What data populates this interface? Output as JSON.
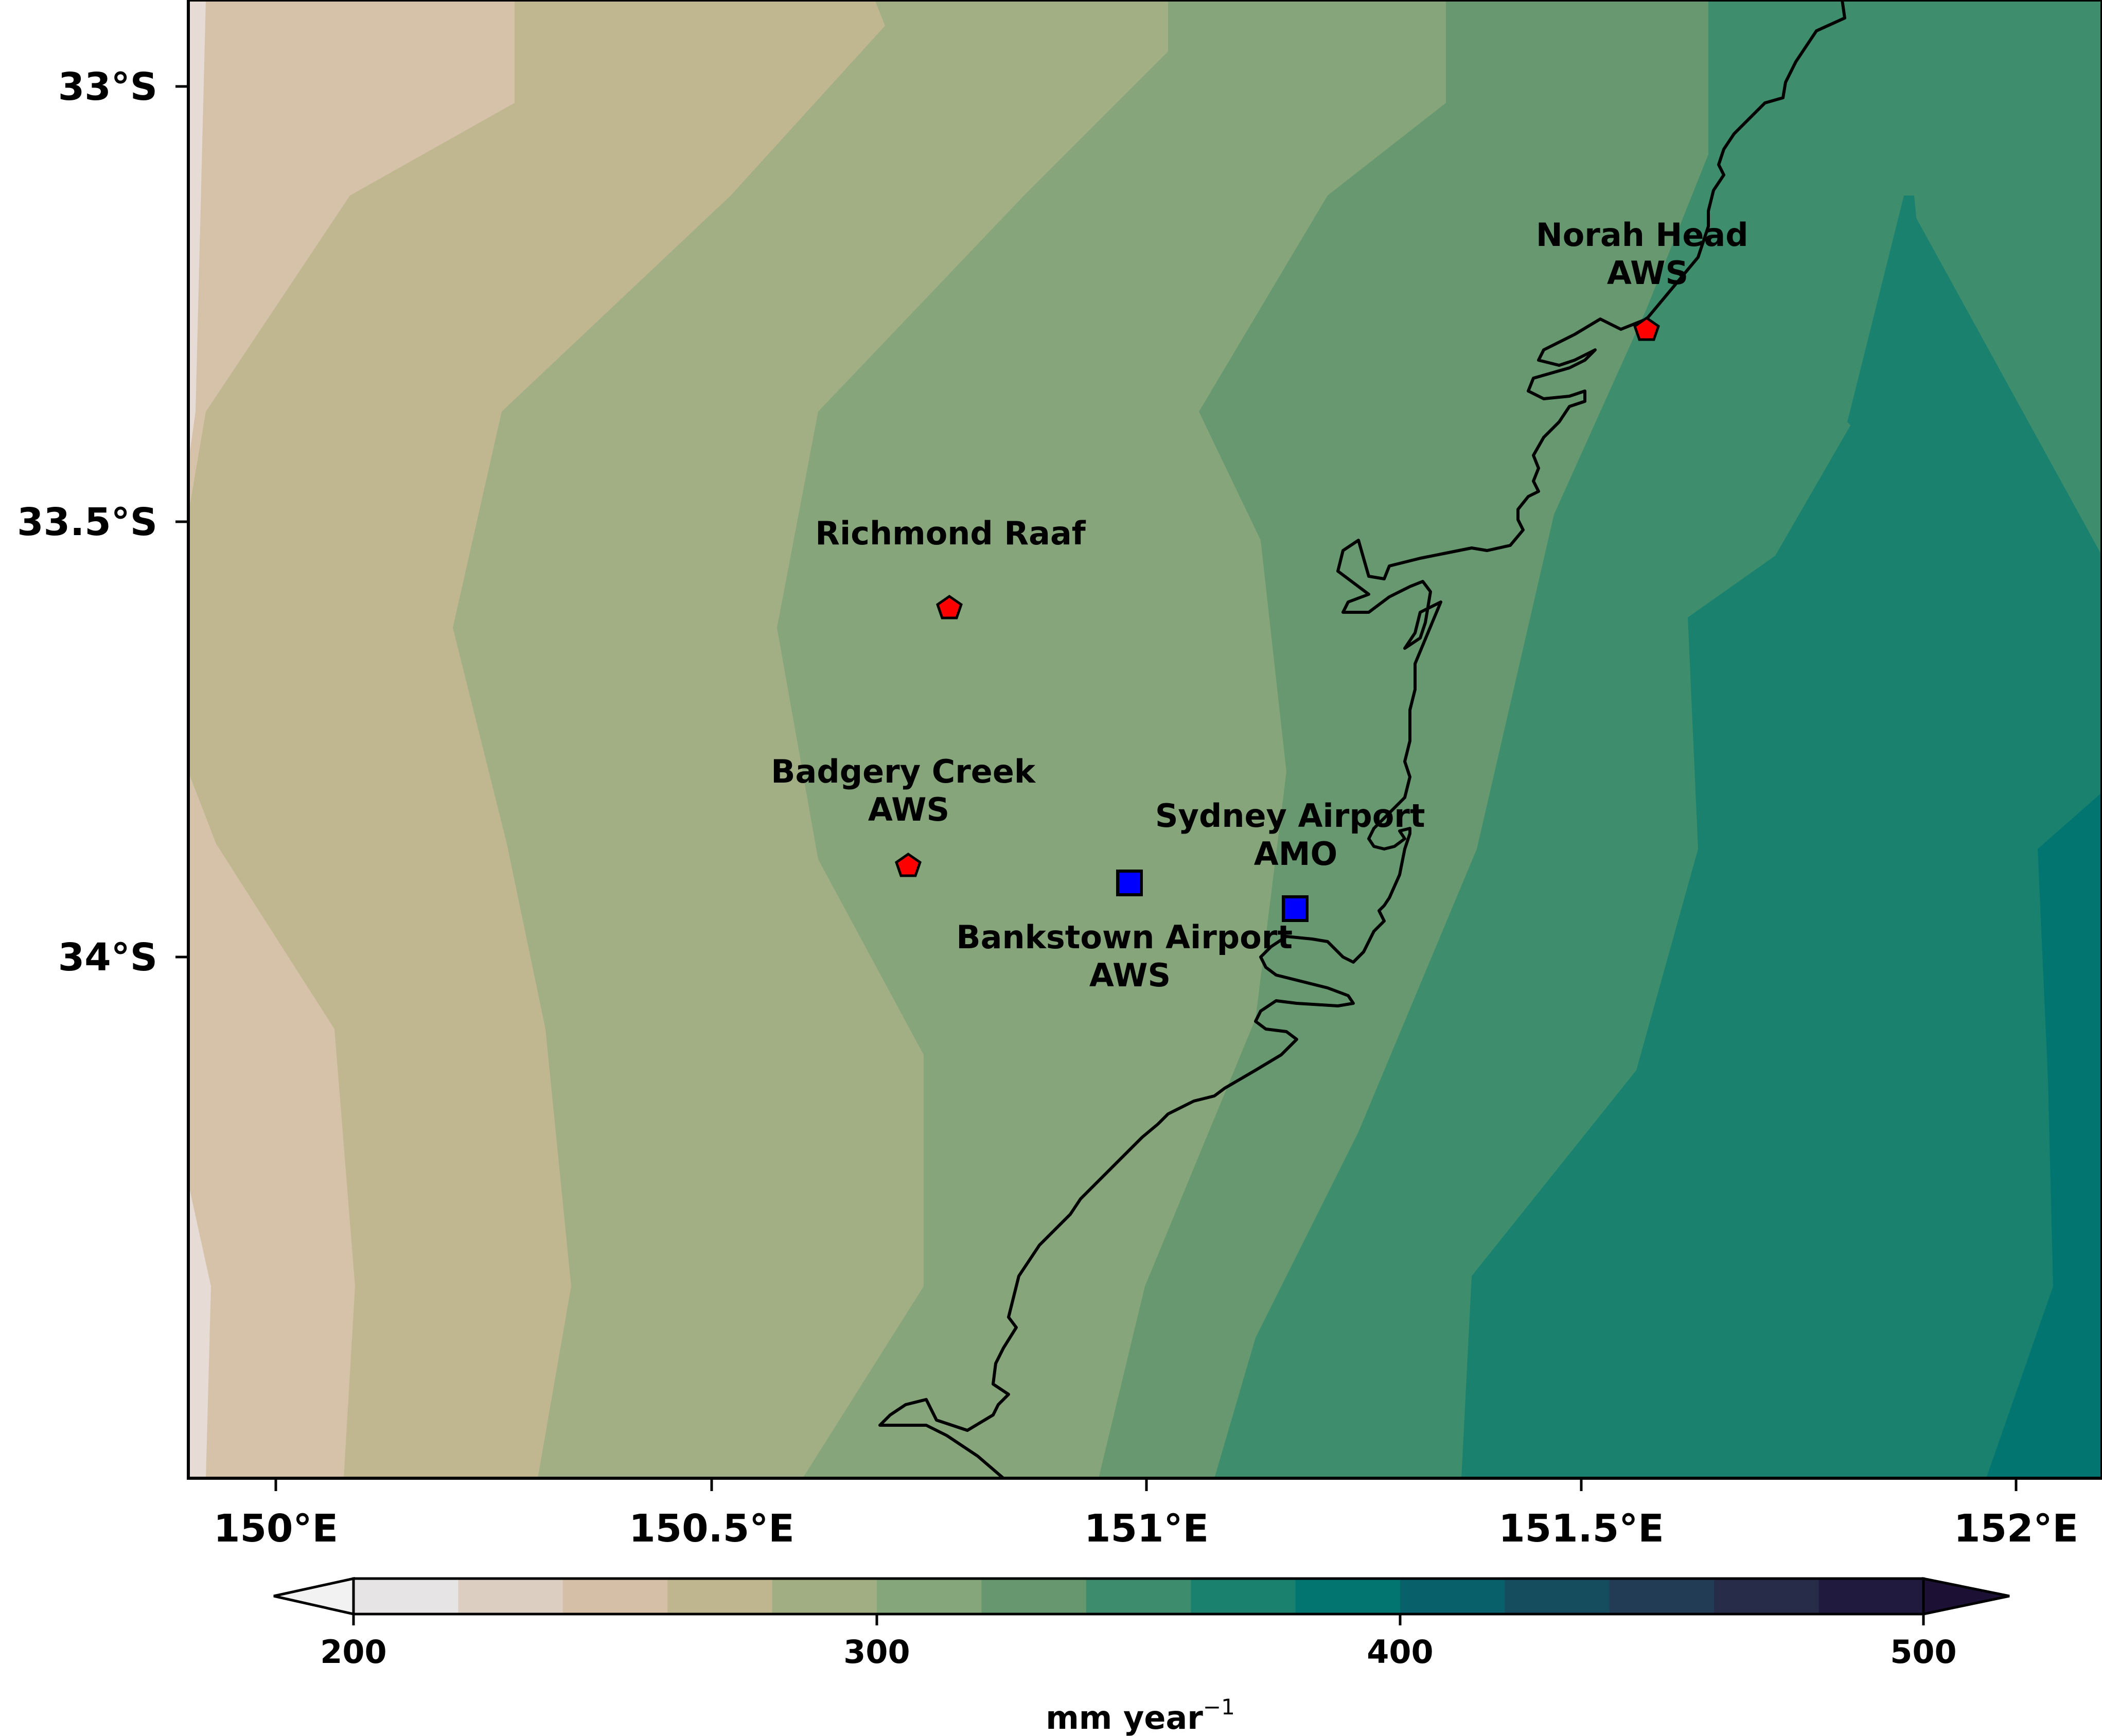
{
  "chart_data": {
    "type": "contour_map",
    "extent": {
      "lon": [
        149.9,
        152.1
      ],
      "lat": [
        -34.6,
        -32.9
      ]
    },
    "x_ticks": [
      {
        "value": 150.0,
        "label": "150°E"
      },
      {
        "value": 150.5,
        "label": "150.5°E"
      },
      {
        "value": 151.0,
        "label": "151°E"
      },
      {
        "value": 151.5,
        "label": "151.5°E"
      },
      {
        "value": 152.0,
        "label": "152°E"
      }
    ],
    "y_ticks": [
      {
        "value": -33.0,
        "label": "33°S"
      },
      {
        "value": -33.5,
        "label": "33.5°S"
      },
      {
        "value": -34.0,
        "label": "34°S"
      }
    ],
    "stations": [
      {
        "name": "Norah Head AWS",
        "lines": [
          "Norah Head",
          "AWS"
        ],
        "lon": 151.575,
        "lat": -33.282,
        "marker": "pentagon",
        "color": "#ff0000"
      },
      {
        "name": "Richmond Raaf",
        "lines": [
          "Richmond Raaf"
        ],
        "lon": 150.78,
        "lat": -33.6,
        "marker": "pentagon",
        "color": "#ff0000"
      },
      {
        "name": "Badgery Creek AWS",
        "lines": [
          "Badgery Creek",
          "AWS"
        ],
        "lon": 150.73,
        "lat": -33.897,
        "marker": "pentagon",
        "color": "#ff0000"
      },
      {
        "name": "Bankstown Airport AWS",
        "lines": [
          "Bankstown Airport",
          "AWS"
        ],
        "lon": 150.985,
        "lat": -33.924,
        "marker": "square",
        "color": "#0000ff"
      },
      {
        "name": "Sydney Airport AMO",
        "lines": [
          "Sydney Airport",
          "AMO"
        ],
        "lon": 151.173,
        "lat": -33.953,
        "marker": "square",
        "color": "#0000ff"
      }
    ],
    "colorbar": {
      "min": 200,
      "max": 500,
      "step": 20,
      "extend": "both",
      "ticks": [
        200,
        300,
        400,
        500
      ],
      "label": "mm year",
      "label_superscript": "−1",
      "colors": [
        "#e6e4e4",
        "#dccfc2",
        "#d5bfa6",
        "#bfb690",
        "#a1ad83",
        "#85a57a",
        "#66976f",
        "#3d8c6d",
        "#1b816f",
        "#037571",
        "#07606a",
        "#154c5e",
        "#223c55",
        "#272c49",
        "#211a3f"
      ],
      "under_color": "#f3f2f3",
      "over_color": "#1c1134"
    }
  }
}
